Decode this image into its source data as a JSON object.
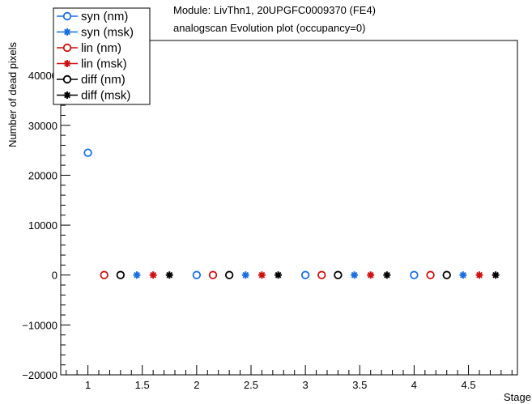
{
  "title_lines": [
    "Module: LivThn1, 20UPGFC0009370 (FE4)",
    "analogscan Evolution plot (occupancy=0)"
  ],
  "chart_data": {
    "type": "scatter",
    "title": "Module: LivThn1, 20UPGFC0009370 (FE4) analogscan Evolution plot (occupancy=0)",
    "xlabel": "Stage",
    "ylabel": "Number of dead pixels",
    "xlim": [
      0.75,
      4.95
    ],
    "ylim": [
      -20000,
      47000
    ],
    "x_ticks": [
      1,
      1.5,
      2,
      2.5,
      3,
      3.5,
      4,
      4.5
    ],
    "x_tick_labels": [
      "1",
      "1.5",
      "2",
      "2.5",
      "3",
      "3.5",
      "4",
      "4.5"
    ],
    "y_ticks": [
      -20000,
      -10000,
      0,
      10000,
      20000,
      30000,
      40000
    ],
    "y_tick_labels": [
      "−20000",
      "−10000",
      "0",
      "10000",
      "20000",
      "30000",
      "40000"
    ],
    "grid": false,
    "legend_placement": "top-left",
    "series": [
      {
        "name": "syn (nm)",
        "color": "#1a6fdf",
        "marker": "open-circle",
        "x": [
          1,
          2,
          3,
          4
        ],
        "y": [
          24500,
          0,
          0,
          0
        ]
      },
      {
        "name": "syn (msk)",
        "color": "#1a6fdf",
        "marker": "star",
        "x": [
          1.45,
          2.45,
          3.45,
          4.45
        ],
        "y": [
          0,
          0,
          0,
          0
        ]
      },
      {
        "name": "lin (nm)",
        "color": "#cc1111",
        "marker": "open-circle",
        "x": [
          1.15,
          2.15,
          3.15,
          4.15
        ],
        "y": [
          0,
          0,
          0,
          0
        ]
      },
      {
        "name": "lin (msk)",
        "color": "#cc1111",
        "marker": "star",
        "x": [
          1.6,
          2.6,
          3.6,
          4.6
        ],
        "y": [
          0,
          0,
          0,
          0
        ]
      },
      {
        "name": "diff (nm)",
        "color": "#000000",
        "marker": "open-circle",
        "x": [
          1.3,
          2.3,
          3.3,
          4.3
        ],
        "y": [
          0,
          0,
          0,
          0
        ]
      },
      {
        "name": "diff (msk)",
        "color": "#000000",
        "marker": "star",
        "x": [
          1.75,
          2.75,
          3.75,
          4.75
        ],
        "y": [
          0,
          0,
          0,
          0
        ]
      }
    ]
  }
}
